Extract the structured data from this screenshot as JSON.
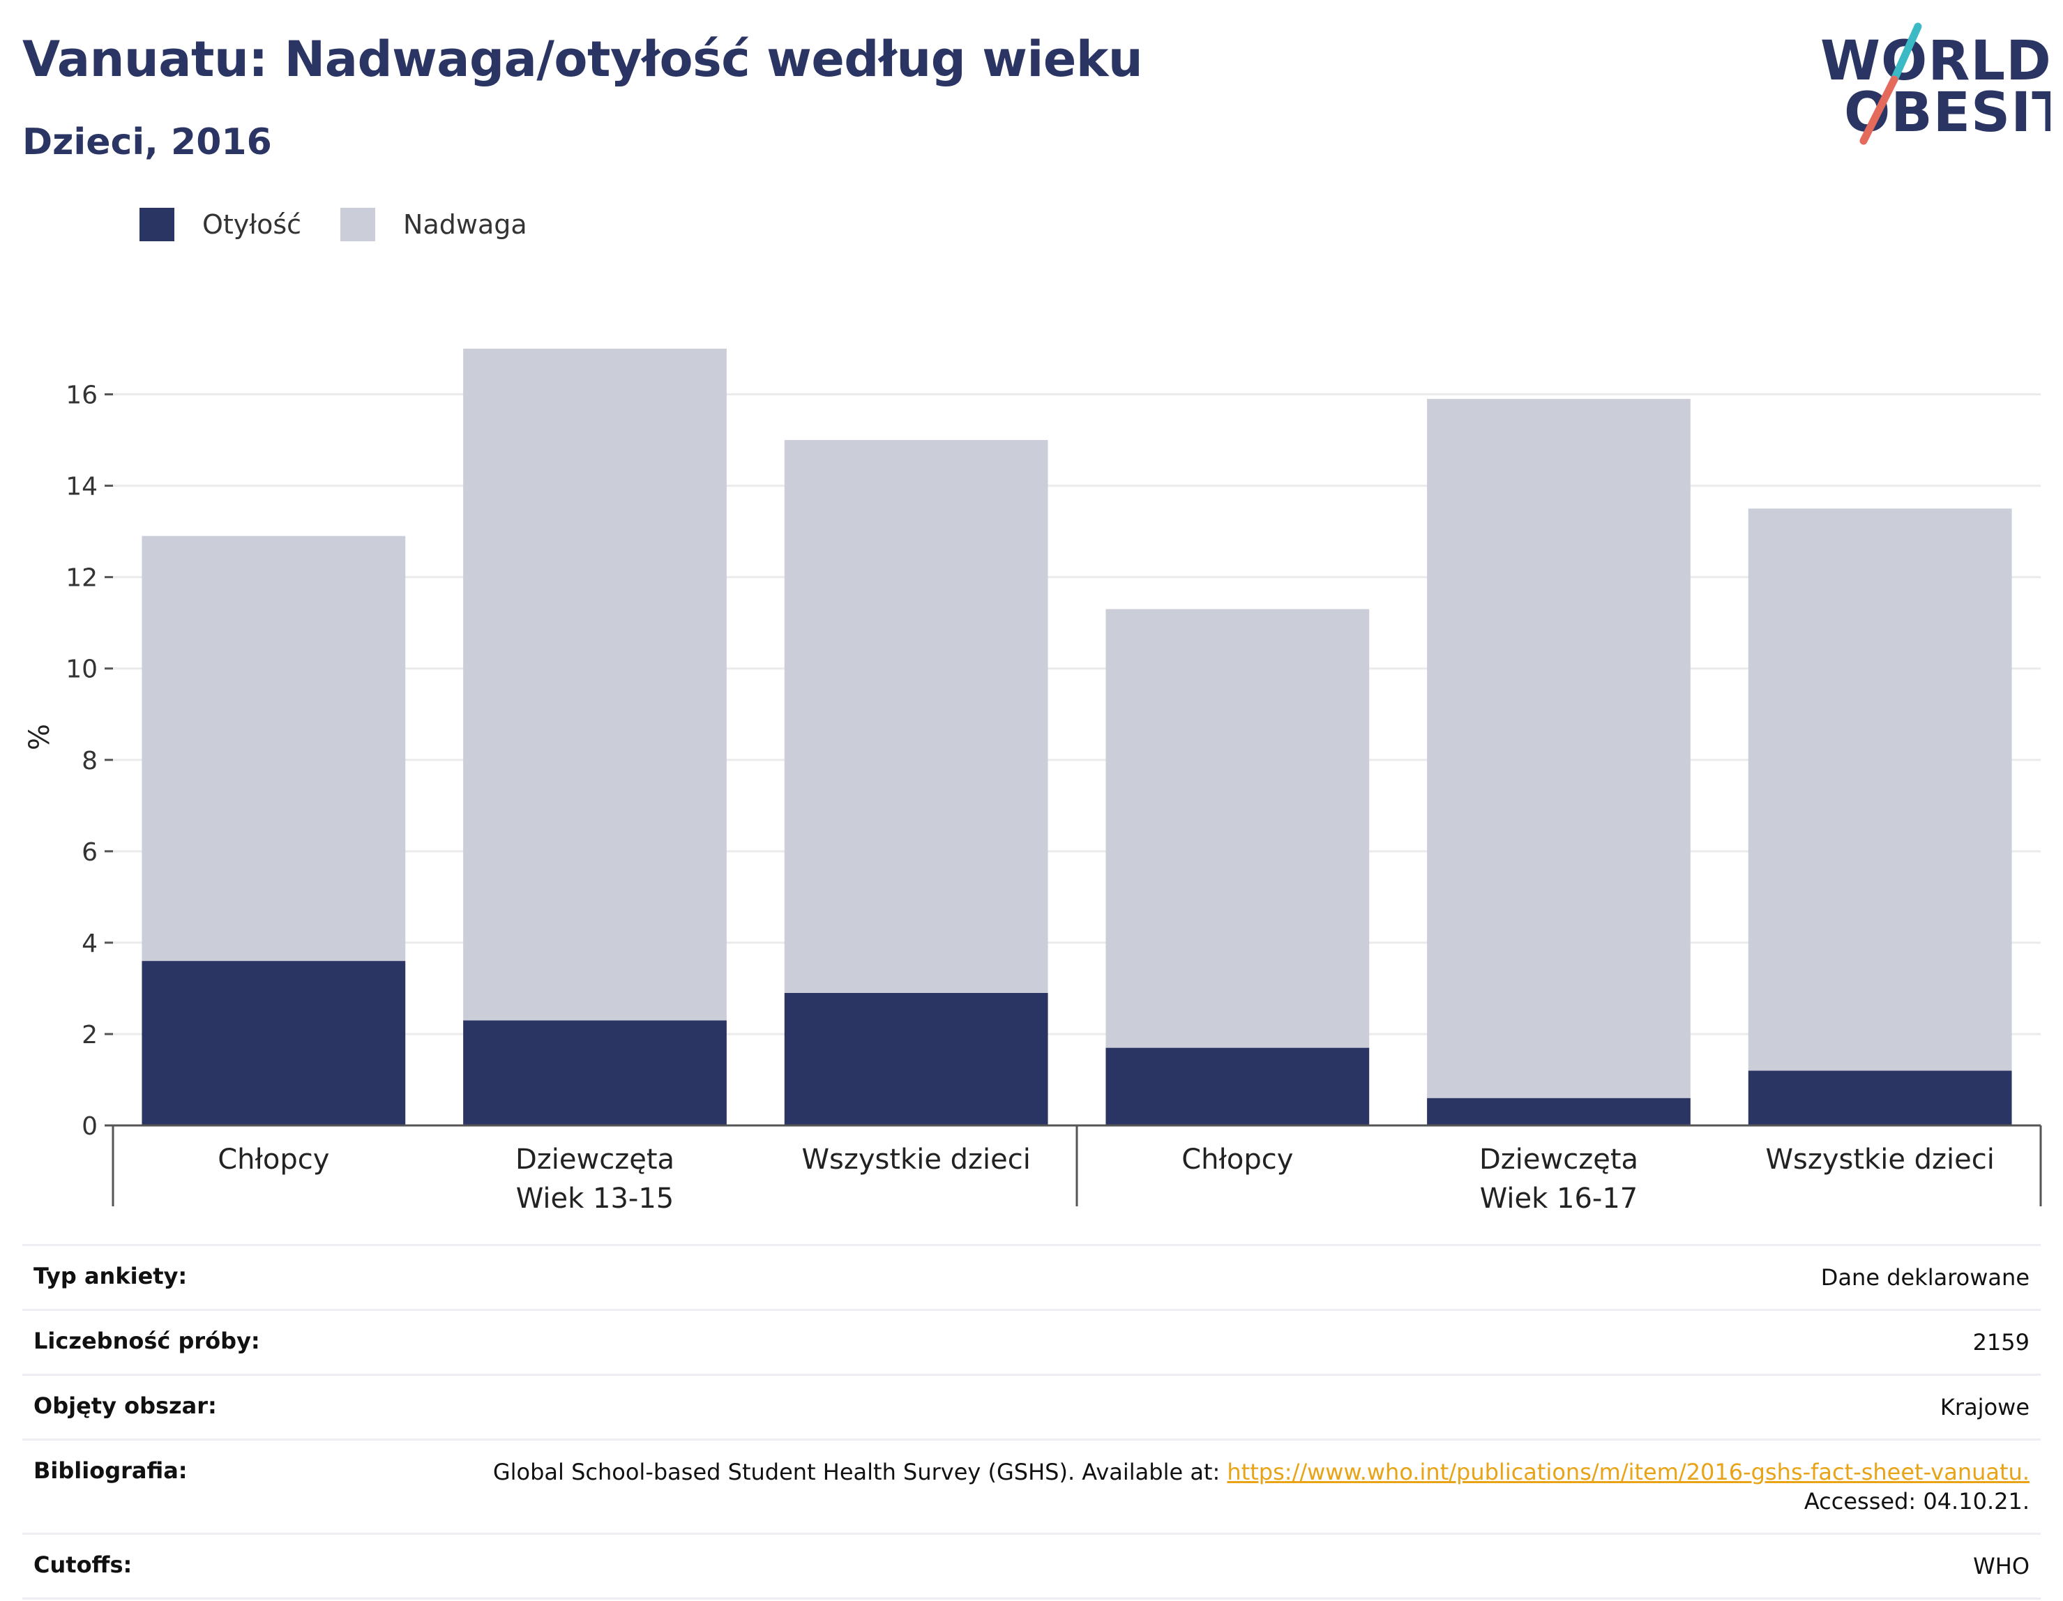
{
  "header": {
    "title": "Vanuatu: Nadwaga/otyłość według wieku",
    "subtitle": "Dzieci, 2016"
  },
  "logo": {
    "line1": "WORLD",
    "line2": "OBESITY"
  },
  "colors": {
    "obesity": "#2b3564",
    "overweight": "#cbcdd9",
    "title": "#2b3564",
    "link": "#e8a317"
  },
  "chart_data": {
    "type": "bar",
    "stacked": true,
    "ylabel": "%",
    "ylim": [
      0,
      17
    ],
    "yticks": [
      0,
      2,
      4,
      6,
      8,
      10,
      12,
      14,
      16
    ],
    "grid": true,
    "legend_position": "top-left",
    "groups": [
      {
        "label": "Wiek 13-15",
        "categories": [
          "Chłopcy",
          "Dziewczęta",
          "Wszystkie dzieci"
        ]
      },
      {
        "label": "Wiek 16-17",
        "categories": [
          "Chłopcy",
          "Dziewczęta",
          "Wszystkie dzieci"
        ]
      }
    ],
    "series": [
      {
        "name": "Otyłość",
        "values": [
          3.6,
          2.3,
          2.9,
          1.7,
          0.6,
          1.2
        ]
      },
      {
        "name": "Nadwaga",
        "values": [
          9.3,
          14.7,
          12.1,
          9.6,
          15.3,
          12.3
        ]
      }
    ]
  },
  "info": {
    "survey_type": {
      "label": "Typ ankiety:",
      "value": "Dane deklarowane"
    },
    "sample_size": {
      "label": "Liczebność próby:",
      "value": "2159"
    },
    "area": {
      "label": "Objęty obszar:",
      "value": "Krajowe"
    },
    "bibliography": {
      "label": "Bibliografia:",
      "prefix": "Global School-based Student Health Survey (GSHS). Available at: ",
      "link": "https://www.who.int/publications/m/item/2016-gshs-fact-sheet-vanuatu.",
      "suffix": " Accessed: 04.10.21."
    },
    "cutoffs": {
      "label": "Cutoffs:",
      "value": "WHO"
    }
  }
}
